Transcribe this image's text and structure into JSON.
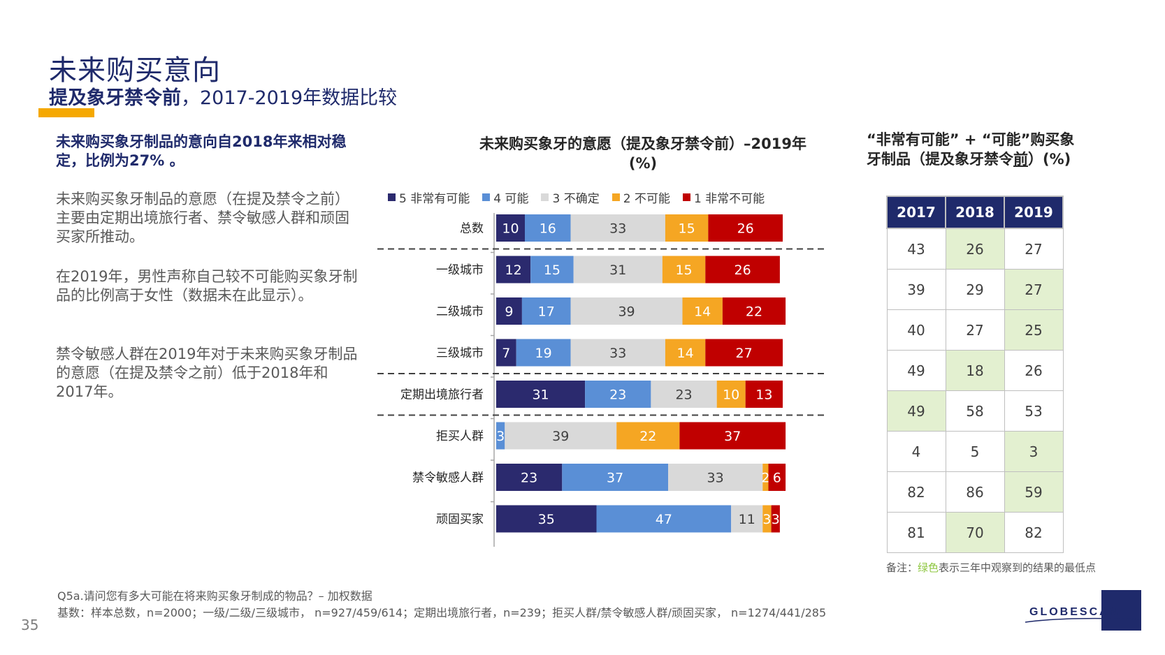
{
  "header": {
    "title": "未来购买意向",
    "subtitle_bold": "提及象牙禁令前",
    "subtitle_rest": "，2017-2019年数据比较"
  },
  "left": {
    "lead": "未来购买象牙制品的意向自2018年来相对稳定，比例为27% 。",
    "p1": "未来购买象牙制品的意愿（在提及禁令之前）主要由定期出境旅行者、禁令敏感人群和顽固买家所推动。",
    "p2": "在2019年，男性声称自己较不可能购买象牙制品的比例高于女性（数据未在此显示）。",
    "p3": "禁令敏感人群在2019年对于未来购买象牙制品的意愿（在提及禁令之前）低于2018年和2017年。"
  },
  "chart_data": {
    "type": "bar",
    "orientation": "horizontal",
    "stacked": true,
    "title": "未来购买象牙的意愿（提及象牙禁令前）–2019年 (%)",
    "categories": [
      "总数",
      "一级城市",
      "二级城市",
      "三级城市",
      "定期出境旅行者",
      "拒买人群",
      "禁令敏感人群",
      "顽固买家"
    ],
    "series": [
      {
        "name": "5 非常有可能",
        "color": "#2b2a6e",
        "text_color": "#ffffff",
        "values": [
          10,
          12,
          9,
          7,
          31,
          0,
          23,
          35
        ]
      },
      {
        "name": "4 可能",
        "color": "#5a8fd6",
        "text_color": "#ffffff",
        "values": [
          16,
          15,
          17,
          19,
          23,
          3,
          37,
          47
        ]
      },
      {
        "name": "3 不确定",
        "color": "#d9d9d9",
        "text_color": "#404040",
        "values": [
          33,
          31,
          39,
          33,
          23,
          39,
          33,
          11
        ]
      },
      {
        "name": "2 不可能",
        "color": "#f5a623",
        "text_color": "#ffffff",
        "values": [
          15,
          15,
          14,
          14,
          10,
          22,
          2,
          3
        ]
      },
      {
        "name": "1 非常不可能",
        "color": "#c00000",
        "text_color": "#ffffff",
        "values": [
          26,
          26,
          22,
          27,
          13,
          37,
          6,
          3
        ]
      }
    ],
    "xlim": [
      0,
      100
    ],
    "separators_after": [
      0,
      3,
      4
    ]
  },
  "table": {
    "title_line1": "“非常有可能” + “可能”购买象",
    "title_line2_pre": "牙制品（提及象牙禁令",
    "title_line2_u": "前",
    "title_line2_post": "）(%)",
    "columns": [
      "2017",
      "2018",
      "2019"
    ],
    "rows": [
      [
        {
          "v": "43",
          "low": false
        },
        {
          "v": "26",
          "low": true
        },
        {
          "v": "27",
          "low": false
        }
      ],
      [
        {
          "v": "39",
          "low": false
        },
        {
          "v": "29",
          "low": false
        },
        {
          "v": "27",
          "low": true
        }
      ],
      [
        {
          "v": "40",
          "low": false
        },
        {
          "v": "27",
          "low": false
        },
        {
          "v": "25",
          "low": true
        }
      ],
      [
        {
          "v": "49",
          "low": false
        },
        {
          "v": "18",
          "low": true
        },
        {
          "v": "26",
          "low": false
        }
      ],
      [
        {
          "v": "49",
          "low": true
        },
        {
          "v": "58",
          "low": false
        },
        {
          "v": "53",
          "low": false
        }
      ],
      [
        {
          "v": "4",
          "low": false
        },
        {
          "v": "5",
          "low": false
        },
        {
          "v": "3",
          "low": true
        }
      ],
      [
        {
          "v": "82",
          "low": false
        },
        {
          "v": "86",
          "low": false
        },
        {
          "v": "59",
          "low": true
        }
      ],
      [
        {
          "v": "81",
          "low": false
        },
        {
          "v": "70",
          "low": true
        },
        {
          "v": "82",
          "low": false
        }
      ]
    ],
    "highlight_color": "#e3f0d0",
    "note_pre": "备注：",
    "note_green": "绿色",
    "note_post": "表示三年中观察到的结果的最低点"
  },
  "footer": {
    "question": "Q5a.请问您有多大可能在将来购买象牙制成的物品？– 加权数据",
    "base": "基数：样本总数，n=2000；一级/二级/三级城市， n=927/459/614；定期出境旅行者，n=239；拒买人群/禁令敏感人群/顽固买家， n=1274/441/285",
    "page_number": "35",
    "logo_text": "GLOBESCAN"
  },
  "colors": {
    "navy": "#1f2a6b",
    "accent": "#f5a800"
  }
}
